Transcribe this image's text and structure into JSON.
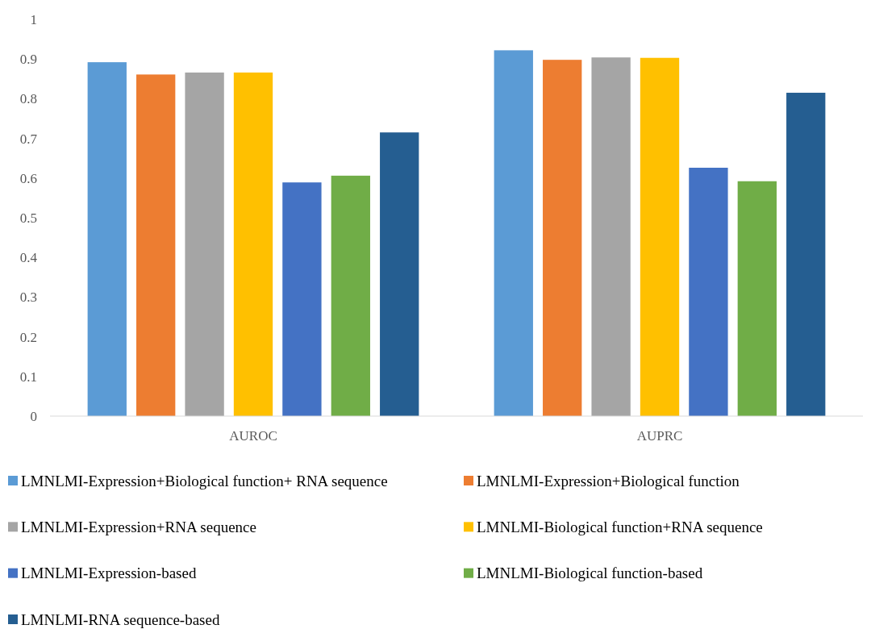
{
  "chart_data": {
    "type": "bar",
    "categories": [
      "AUROC",
      "AUPRC"
    ],
    "series": [
      {
        "name": "LMNLMI-Expression+Biological function+ RNA sequence",
        "color": "#5b9bd5",
        "values": [
          0.892,
          0.922
        ]
      },
      {
        "name": "LMNLMI-Expression+Biological function",
        "color": "#ed7d31",
        "values": [
          0.861,
          0.898
        ]
      },
      {
        "name": "LMNLMI-Expression+RNA sequence",
        "color": "#a5a5a5",
        "values": [
          0.866,
          0.904
        ]
      },
      {
        "name": "LMNLMI-Biological function+RNA sequence",
        "color": "#ffc000",
        "values": [
          0.866,
          0.903
        ]
      },
      {
        "name": "LMNLMI-Expression-based",
        "color": "#4472c4",
        "values": [
          0.589,
          0.626
        ]
      },
      {
        "name": "LMNLMI-Biological function-based",
        "color": "#70ad47",
        "values": [
          0.606,
          0.592
        ]
      },
      {
        "name": "LMNLMI-RNA sequence-based",
        "color": "#255e91",
        "values": [
          0.715,
          0.815
        ]
      }
    ],
    "ylim": [
      0,
      1
    ],
    "yticks": [
      0,
      0.1,
      0.2,
      0.3,
      0.4,
      0.5,
      0.6,
      0.7,
      0.8,
      0.9,
      1
    ],
    "grid": false,
    "legend": "bottom"
  }
}
